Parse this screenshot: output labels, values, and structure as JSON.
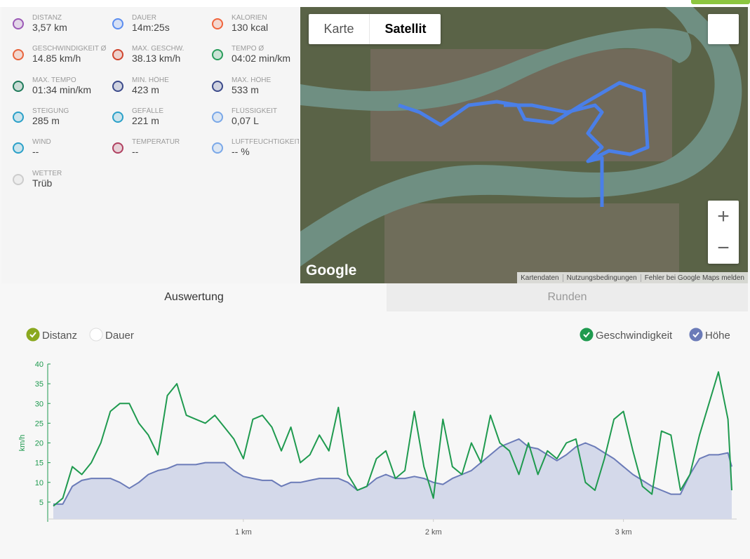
{
  "stats": [
    {
      "label": "DISTANZ",
      "value": "3,57 km",
      "color": "#9b59b6"
    },
    {
      "label": "DAUER",
      "value": "14m:25s",
      "color": "#5b8def"
    },
    {
      "label": "KALORIEN",
      "value": "130 kcal",
      "color": "#f0643c"
    },
    {
      "label": "GESCHWINDIGKEIT Ø",
      "value": "14.85 km/h",
      "color": "#e8643c"
    },
    {
      "label": "MAX. GESCHW.",
      "value": "38.13 km/h",
      "color": "#d0452f"
    },
    {
      "label": "TEMPO Ø",
      "value": "04:02 min/km",
      "color": "#2a9d5c"
    },
    {
      "label": "MAX. TEMPO",
      "value": "01:34 min/km",
      "color": "#1f7a5a"
    },
    {
      "label": "MIN. HÖHE",
      "value": "423 m",
      "color": "#3b4a8a"
    },
    {
      "label": "MAX. HÖHE",
      "value": "533 m",
      "color": "#3b4a8a"
    },
    {
      "label": "STEIGUNG",
      "value": "285 m",
      "color": "#2aa0c8"
    },
    {
      "label": "GEFÄLLE",
      "value": "221 m",
      "color": "#2aa0c8"
    },
    {
      "label": "FLÜSSIGKEIT",
      "value": "0,07 L",
      "color": "#7aa8e8"
    },
    {
      "label": "WIND",
      "value": "--",
      "color": "#2aa0c8"
    },
    {
      "label": "TEMPERATUR",
      "value": "--",
      "color": "#b04060"
    },
    {
      "label": "LUFTFEUCHTIGKEIT",
      "value": "-- %",
      "color": "#7aa8e8"
    },
    {
      "label": "WETTER",
      "value": "Trüb",
      "color": "#cccccc"
    }
  ],
  "map": {
    "buttons": [
      "Karte",
      "Satellit"
    ],
    "logo": "Google",
    "footer": [
      "Kartendaten",
      "Nutzungsbedingungen",
      "Fehler bei Google Maps melden"
    ],
    "zoom_in": "+",
    "zoom_out": "−"
  },
  "tabs": [
    "Auswertung",
    "Runden"
  ],
  "x_toggles": [
    {
      "label": "Distanz",
      "checked": true
    },
    {
      "label": "Dauer",
      "checked": false
    }
  ],
  "chart_data": {
    "type": "line",
    "ylabel": "km/h",
    "x": [
      0,
      0.05,
      0.1,
      0.15,
      0.2,
      0.25,
      0.3,
      0.35,
      0.4,
      0.45,
      0.5,
      0.55,
      0.6,
      0.65,
      0.7,
      0.75,
      0.8,
      0.85,
      0.9,
      0.95,
      1.0,
      1.05,
      1.1,
      1.15,
      1.2,
      1.25,
      1.3,
      1.35,
      1.4,
      1.45,
      1.5,
      1.55,
      1.6,
      1.65,
      1.7,
      1.75,
      1.8,
      1.85,
      1.9,
      1.95,
      2.0,
      2.05,
      2.1,
      2.15,
      2.2,
      2.25,
      2.3,
      2.35,
      2.4,
      2.45,
      2.5,
      2.55,
      2.6,
      2.65,
      2.7,
      2.75,
      2.8,
      2.85,
      2.9,
      2.95,
      3.0,
      3.05,
      3.1,
      3.15,
      3.2,
      3.25,
      3.3,
      3.35,
      3.4,
      3.45,
      3.5,
      3.55,
      3.57
    ],
    "series": [
      {
        "name": "Höhe",
        "color": "#6b7bb8",
        "fill": "#d4d9ea",
        "values": [
          4.5,
          4.5,
          9,
          10.5,
          11,
          11,
          11,
          10,
          8.5,
          10,
          12,
          13,
          13.5,
          14.5,
          14.5,
          14.5,
          15,
          15,
          15,
          13,
          11.5,
          11,
          10.5,
          10.5,
          9,
          10,
          10,
          10.5,
          11,
          11,
          11,
          10,
          8,
          9,
          11,
          12,
          11,
          11,
          11.5,
          11,
          10,
          9.5,
          11,
          12,
          13,
          15,
          17,
          19,
          20,
          21,
          19,
          18.5,
          17,
          15.5,
          17,
          19,
          20,
          19,
          17.5,
          16,
          14,
          12,
          10.5,
          9,
          8,
          7,
          7,
          12,
          16,
          17,
          17,
          17.5,
          14
        ]
      },
      {
        "name": "Geschwindigkeit",
        "color": "#1f9a4f",
        "values": [
          4,
          6,
          14,
          12,
          15,
          20,
          28,
          30,
          30,
          25,
          22,
          17,
          32,
          35,
          27,
          26,
          25,
          27,
          24,
          21,
          16,
          26,
          27,
          24,
          18,
          24,
          15,
          17,
          22,
          18,
          29,
          12,
          8,
          9,
          16,
          18,
          11,
          13,
          28,
          14,
          6,
          26,
          14,
          12,
          20,
          15,
          27,
          20,
          18,
          12,
          20,
          12,
          18,
          16,
          20,
          21,
          10,
          8,
          16,
          26,
          28,
          18,
          9,
          7,
          23,
          22,
          8,
          12,
          22,
          30,
          38,
          26,
          8
        ]
      }
    ],
    "xlim": [
      0,
      3.57
    ],
    "ylim": [
      0,
      40
    ],
    "xticks": [
      {
        "value": 1,
        "label": "1 km"
      },
      {
        "value": 2,
        "label": "2 km"
      },
      {
        "value": 3,
        "label": "3 km"
      }
    ],
    "yticks": [
      5,
      10,
      15,
      20,
      25,
      30,
      35,
      40
    ]
  }
}
